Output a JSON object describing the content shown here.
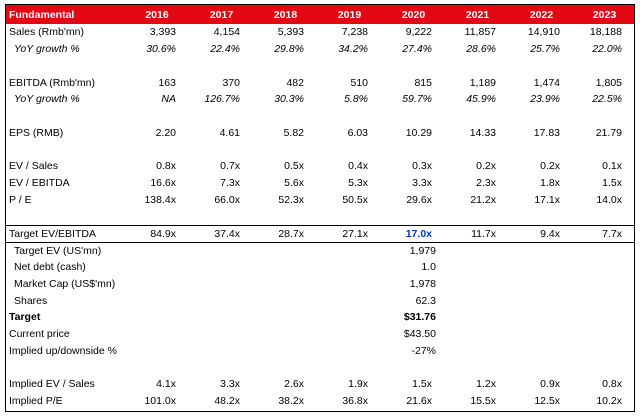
{
  "header": {
    "label": "Fundamental",
    "years": [
      "2016",
      "2017",
      "2018",
      "2019",
      "2020",
      "2021",
      "2022",
      "2023"
    ]
  },
  "rows": [
    {
      "label": "Sales (Rmb'mn)",
      "values": [
        "3,393",
        "4,154",
        "5,393",
        "7,238",
        "9,222",
        "11,857",
        "14,910",
        "18,188"
      ]
    },
    {
      "label": "YoY growth %",
      "values": [
        "30.6%",
        "22.4%",
        "29.8%",
        "34.2%",
        "27.4%",
        "28.6%",
        "25.7%",
        "22.0%"
      ]
    },
    {
      "label": "EBITDA (Rmb'mn)",
      "values": [
        "163",
        "370",
        "482",
        "510",
        "815",
        "1,189",
        "1,474",
        "1,805"
      ]
    },
    {
      "label": "YoY growth %",
      "values": [
        "NA",
        "126.7%",
        "30.3%",
        "5.8%",
        "59.7%",
        "45.9%",
        "23.9%",
        "22.5%"
      ]
    },
    {
      "label": "EPS (RMB)",
      "values": [
        "2.20",
        "4.61",
        "5.82",
        "6.03",
        "10.29",
        "14.33",
        "17.83",
        "21.79"
      ]
    },
    {
      "label": "EV / Sales",
      "values": [
        "0.8x",
        "0.7x",
        "0.5x",
        "0.4x",
        "0.3x",
        "0.2x",
        "0.2x",
        "0.1x"
      ]
    },
    {
      "label": "EV / EBITDA",
      "values": [
        "16.6x",
        "7.3x",
        "5.6x",
        "5.3x",
        "3.3x",
        "2.3x",
        "1.8x",
        "1.5x"
      ]
    },
    {
      "label": "P / E",
      "values": [
        "138.4x",
        "66.0x",
        "52.3x",
        "50.5x",
        "29.6x",
        "21.2x",
        "17.1x",
        "14.0x"
      ]
    },
    {
      "label": "Target EV/EBITDA",
      "values": [
        "84.9x",
        "37.4x",
        "28.7x",
        "27.1x",
        "17.0x",
        "11.7x",
        "9.4x",
        "7.7x"
      ]
    }
  ],
  "target": [
    {
      "label": "Target EV (US'mn)",
      "value": "1,979"
    },
    {
      "label": "Net debt (cash)",
      "value": "1.0"
    },
    {
      "label": "Market Cap (US$'mn)",
      "value": "1,978"
    },
    {
      "label": "Shares",
      "value": "62.3"
    },
    {
      "label": "Target",
      "value": "$31.76"
    },
    {
      "label": "Current price",
      "value": "$43.50"
    },
    {
      "label": "Implied up/downside %",
      "value": "-27%"
    }
  ],
  "implied": [
    {
      "label": "Implied EV / Sales",
      "values": [
        "4.1x",
        "3.3x",
        "2.6x",
        "1.9x",
        "1.5x",
        "1.2x",
        "0.9x",
        "0.8x"
      ]
    },
    {
      "label": "Implied P/E",
      "values": [
        "101.0x",
        "48.2x",
        "38.2x",
        "36.8x",
        "21.6x",
        "15.5x",
        "12.5x",
        "10.2x"
      ]
    }
  ],
  "colors": {
    "header_bg": "#e30613",
    "highlight": "#0033cc"
  }
}
